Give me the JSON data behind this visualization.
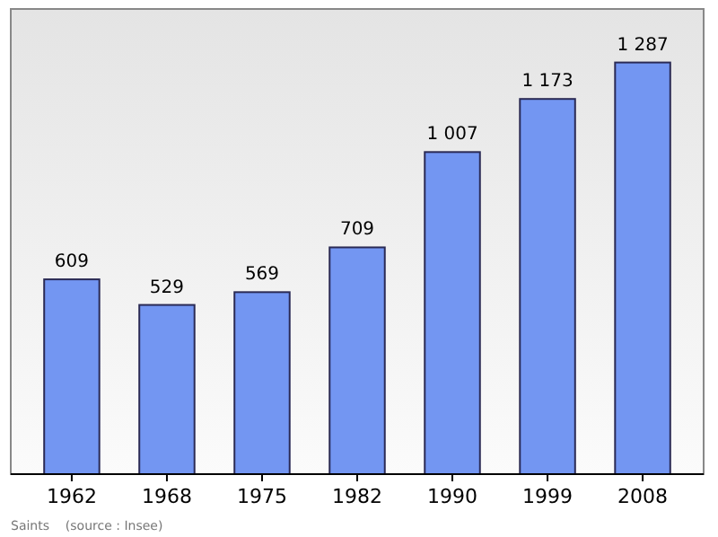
{
  "chart_data": {
    "type": "bar",
    "categories": [
      "1962",
      "1968",
      "1975",
      "1982",
      "1990",
      "1999",
      "2008"
    ],
    "values": [
      609,
      529,
      569,
      709,
      1007,
      1173,
      1287
    ],
    "value_labels": [
      "609",
      "529",
      "569",
      "709",
      "1 007",
      "1 173",
      "1 287"
    ],
    "color": "#7396f2",
    "annotations": [
      "Saints    (source : Insee)"
    ]
  }
}
